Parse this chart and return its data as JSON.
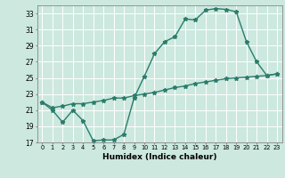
{
  "title": "",
  "xlabel": "Humidex (Indice chaleur)",
  "line_color": "#2a7d6b",
  "bg_color": "#cce8df",
  "grid_color": "#ffffff",
  "xlim": [
    -0.5,
    23.5
  ],
  "ylim": [
    17,
    34
  ],
  "yticks": [
    17,
    19,
    21,
    23,
    25,
    27,
    29,
    31,
    33
  ],
  "xticks": [
    0,
    1,
    2,
    3,
    4,
    5,
    6,
    7,
    8,
    9,
    10,
    11,
    12,
    13,
    14,
    15,
    16,
    17,
    18,
    19,
    20,
    21,
    22,
    23
  ],
  "xtick_labels": [
    "0",
    "1",
    "2",
    "3",
    "4",
    "5",
    "6",
    "7",
    "8",
    "9",
    "10",
    "11",
    "12",
    "13",
    "14",
    "15",
    "16",
    "17",
    "18",
    "19",
    "20",
    "21",
    "22",
    "23"
  ],
  "line1_x": [
    0,
    1,
    2,
    3,
    4,
    5,
    6,
    7,
    8,
    9,
    10,
    11,
    12,
    13,
    14,
    15,
    16,
    17,
    18,
    19,
    20,
    21,
    22,
    23
  ],
  "line1_y": [
    22.0,
    21.0,
    19.5,
    21.0,
    19.7,
    17.2,
    17.3,
    17.3,
    18.0,
    22.5,
    25.2,
    28.0,
    29.5,
    30.1,
    32.3,
    32.2,
    33.4,
    33.6,
    33.5,
    33.2,
    29.5,
    27.0,
    25.3,
    25.5
  ],
  "line2_x": [
    0,
    1,
    2,
    3,
    4,
    5,
    6,
    7,
    8,
    9,
    10,
    11,
    12,
    13,
    14,
    15,
    16,
    17,
    18,
    19,
    20,
    21,
    22,
    23
  ],
  "line2_y": [
    22.0,
    21.3,
    21.5,
    21.8,
    21.8,
    22.0,
    22.2,
    22.5,
    22.5,
    22.8,
    23.0,
    23.2,
    23.5,
    23.8,
    24.0,
    24.3,
    24.5,
    24.7,
    24.9,
    25.0,
    25.1,
    25.2,
    25.3,
    25.5
  ]
}
